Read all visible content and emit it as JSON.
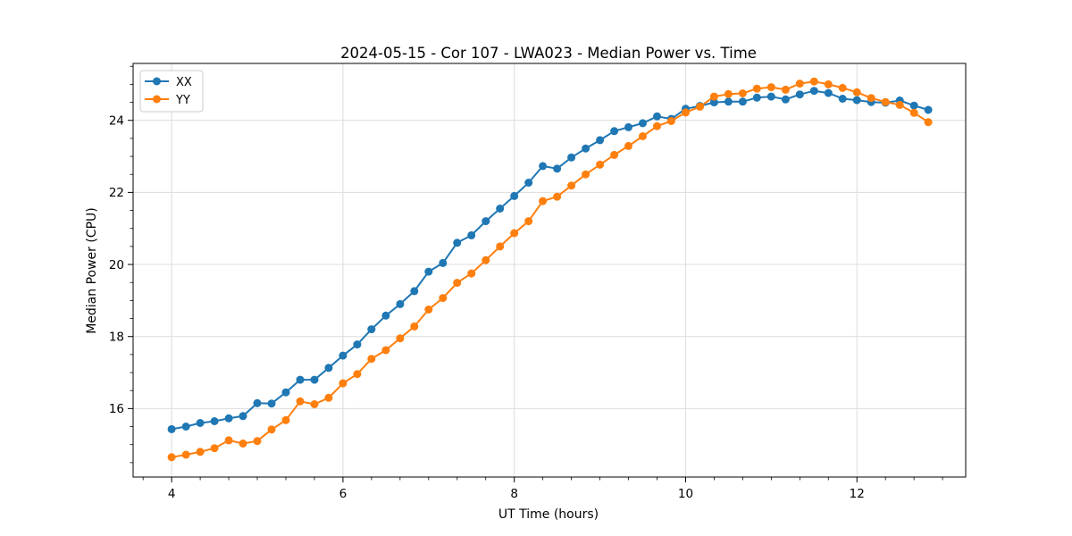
{
  "figure": {
    "background": "#ffffff"
  },
  "chart_data": {
    "type": "line",
    "title": "2024-05-15 - Cor 107 - LWA023 - Median Power vs. Time",
    "xlabel": "UT Time (hours)",
    "ylabel": "Median Power (CPU)",
    "x": [
      4.0,
      4.167,
      4.333,
      4.5,
      4.667,
      4.833,
      5.0,
      5.167,
      5.333,
      5.5,
      5.667,
      5.833,
      6.0,
      6.167,
      6.333,
      6.5,
      6.667,
      6.833,
      7.0,
      7.167,
      7.333,
      7.5,
      7.667,
      7.833,
      8.0,
      8.167,
      8.333,
      8.5,
      8.667,
      8.833,
      9.0,
      9.167,
      9.333,
      9.5,
      9.667,
      9.833,
      10.0,
      10.167,
      10.333,
      10.5,
      10.667,
      10.833,
      11.0,
      11.167,
      11.333,
      11.5,
      11.667,
      11.833,
      12.0,
      12.167,
      12.333,
      12.5,
      12.667,
      12.833
    ],
    "series": [
      {
        "name": "XX",
        "color": "#1f77b4",
        "values": [
          15.43,
          15.5,
          15.6,
          15.65,
          15.73,
          15.79,
          16.15,
          16.14,
          16.45,
          16.8,
          16.8,
          17.13,
          17.47,
          17.78,
          18.2,
          18.58,
          18.9,
          19.26,
          19.8,
          20.04,
          20.6,
          20.81,
          21.2,
          21.55,
          21.9,
          22.27,
          22.73,
          22.66,
          22.97,
          23.22,
          23.45,
          23.7,
          23.81,
          23.92,
          24.11,
          24.04,
          24.32,
          24.4,
          24.5,
          24.52,
          24.52,
          24.63,
          24.66,
          24.58,
          24.72,
          24.82,
          24.76,
          24.6,
          24.56,
          24.51,
          24.49,
          24.55,
          24.41,
          24.29
        ]
      },
      {
        "name": "YY",
        "color": "#ff7f0e",
        "values": [
          14.65,
          14.72,
          14.8,
          14.9,
          15.12,
          15.03,
          15.1,
          15.42,
          15.68,
          16.2,
          16.12,
          16.3,
          16.7,
          16.96,
          17.38,
          17.62,
          17.95,
          18.28,
          18.75,
          19.07,
          19.49,
          19.75,
          20.12,
          20.5,
          20.87,
          21.2,
          21.76,
          21.88,
          22.19,
          22.5,
          22.77,
          23.04,
          23.29,
          23.56,
          23.84,
          23.98,
          24.22,
          24.38,
          24.66,
          24.73,
          24.75,
          24.88,
          24.92,
          24.85,
          25.02,
          25.08,
          25.0,
          24.9,
          24.78,
          24.62,
          24.51,
          24.43,
          24.21,
          23.95
        ]
      }
    ],
    "xlim": [
      3.55,
      13.27
    ],
    "ylim": [
      14.1,
      25.58
    ],
    "xticks": [
      4,
      6,
      8,
      10,
      12
    ],
    "yticks": [
      16,
      18,
      20,
      22,
      24
    ],
    "xtick_labels": [
      "4",
      "6",
      "8",
      "10",
      "12"
    ],
    "ytick_labels": [
      "16",
      "18",
      "20",
      "22",
      "24"
    ],
    "x_minor_step": 0.33333,
    "y_minor_step": 0.5,
    "grid": true,
    "legend_position": "upper left",
    "legend_labels": [
      "XX",
      "YY"
    ],
    "grid_color": "#dcdcdc",
    "spine_color": "#000000",
    "marker": "circle",
    "marker_size": 4.5,
    "line_width": 2
  }
}
